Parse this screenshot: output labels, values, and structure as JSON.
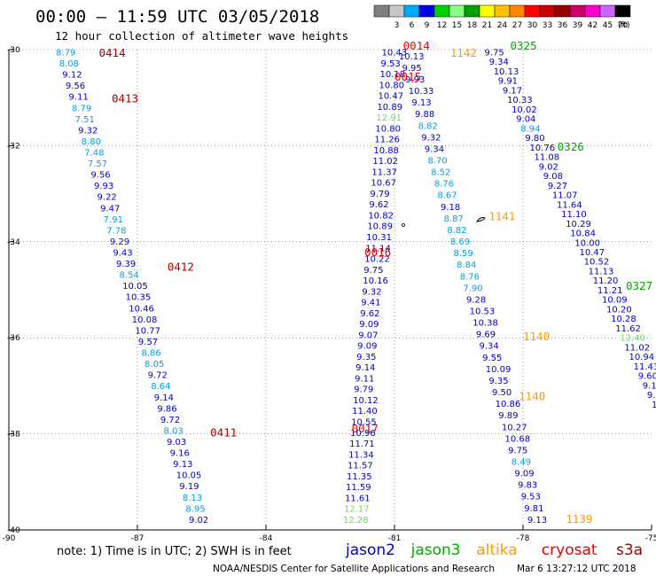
{
  "title": "00:00 – 11:59 UTC 03/05/2018",
  "subtitle": "12 hour collection of altimeter wave heights",
  "legend": {
    "unit_label": "(ft)",
    "bins": [
      {
        "label": "",
        "color": "#808080"
      },
      {
        "label": "3",
        "color": "#c8c8c8"
      },
      {
        "label": "6",
        "color": "#00aaff"
      },
      {
        "label": "9",
        "color": "#0000ee"
      },
      {
        "label": "12",
        "color": "#00d000"
      },
      {
        "label": "15",
        "color": "#88ff88"
      },
      {
        "label": "18",
        "color": "#00a000"
      },
      {
        "label": "21",
        "color": "#ffff00"
      },
      {
        "label": "24",
        "color": "#ffc000"
      },
      {
        "label": "27",
        "color": "#ff8800"
      },
      {
        "label": "30",
        "color": "#ff0000"
      },
      {
        "label": "33",
        "color": "#cc0000"
      },
      {
        "label": "36",
        "color": "#990000"
      },
      {
        "label": "39",
        "color": "#cc0066"
      },
      {
        "label": "42",
        "color": "#ff00cc"
      },
      {
        "label": "45",
        "color": "#cc66ff"
      },
      {
        "label": "70",
        "color": "#000000"
      }
    ]
  },
  "colors": {
    "blue": "#0000c8",
    "cyan": "#00a0e8",
    "green": "#66dd66",
    "red": "#ee0000",
    "darkred": "#aa0000",
    "orange": "#ff9900",
    "jason3": "#00aa00"
  },
  "chart_data": {
    "type": "scatter",
    "xlabel": "",
    "ylabel": "",
    "xlim": [
      -90,
      -75
    ],
    "ylim": [
      -40,
      -30
    ],
    "x_ticks": [
      "-90",
      "-87",
      "-84",
      "-81",
      "-78",
      "-75"
    ],
    "y_ticks": [
      "-30",
      "-32",
      "-34",
      "-36",
      "-38",
      "-40"
    ],
    "tracks": [
      {
        "satellite": "cryosat",
        "direction": "desc",
        "start": [
          -88.9,
          -30.12
        ],
        "end": [
          -85.8,
          -39.85
        ],
        "values": [
          {
            "v": "8.79",
            "c": "cyan"
          },
          {
            "v": "8.08",
            "c": "cyan"
          },
          {
            "v": "9.12",
            "c": "blue"
          },
          {
            "v": "9.56",
            "c": "blue"
          },
          {
            "v": "9.11",
            "c": "blue"
          },
          {
            "v": "8.79",
            "c": "cyan"
          },
          {
            "v": "7.51",
            "c": "cyan"
          },
          {
            "v": "9.32",
            "c": "blue"
          },
          {
            "v": "8.80",
            "c": "cyan"
          },
          {
            "v": "7.48",
            "c": "cyan"
          },
          {
            "v": "7.57",
            "c": "cyan"
          },
          {
            "v": "9.56",
            "c": "blue"
          },
          {
            "v": "9.93",
            "c": "blue"
          },
          {
            "v": "9.22",
            "c": "blue"
          },
          {
            "v": "9.47",
            "c": "blue"
          },
          {
            "v": "7.91",
            "c": "cyan"
          },
          {
            "v": "7.78",
            "c": "cyan"
          },
          {
            "v": "9.29",
            "c": "blue"
          },
          {
            "v": "9.43",
            "c": "blue"
          },
          {
            "v": "9.39",
            "c": "blue"
          },
          {
            "v": "8.54",
            "c": "cyan"
          },
          {
            "v": "10.05",
            "c": "blue"
          },
          {
            "v": "10.35",
            "c": "blue"
          },
          {
            "v": "10.46",
            "c": "blue"
          },
          {
            "v": "10.08",
            "c": "blue"
          },
          {
            "v": "10.77",
            "c": "blue"
          },
          {
            "v": "9.57",
            "c": "blue"
          },
          {
            "v": "8.86",
            "c": "cyan"
          },
          {
            "v": "8.05",
            "c": "cyan"
          },
          {
            "v": "9.72",
            "c": "blue"
          },
          {
            "v": "8.64",
            "c": "cyan"
          },
          {
            "v": "9.14",
            "c": "blue"
          },
          {
            "v": "9.86",
            "c": "blue"
          },
          {
            "v": "9.72",
            "c": "blue"
          },
          {
            "v": "8.03",
            "c": "cyan"
          },
          {
            "v": "9.03",
            "c": "blue"
          },
          {
            "v": "9.16",
            "c": "blue"
          },
          {
            "v": "9.13",
            "c": "blue"
          },
          {
            "v": "10.05",
            "c": "blue"
          },
          {
            "v": "9.19",
            "c": "blue"
          },
          {
            "v": "8.13",
            "c": "cyan"
          },
          {
            "v": "8.95",
            "c": "cyan"
          },
          {
            "v": "9.02",
            "c": "blue"
          }
        ]
      },
      {
        "satellite": "cryosat",
        "direction": "asc",
        "start": [
          -82.2,
          -39.85
        ],
        "end": [
          -81.3,
          -30.12
        ],
        "values": [
          {
            "v": "12.28",
            "c": "green"
          },
          {
            "v": "12.17",
            "c": "green"
          },
          {
            "v": "11.61",
            "c": "blue"
          },
          {
            "v": "11.59",
            "c": "blue"
          },
          {
            "v": "11.35",
            "c": "blue"
          },
          {
            "v": "11.57",
            "c": "blue"
          },
          {
            "v": "11.34",
            "c": "blue"
          },
          {
            "v": "11.71",
            "c": "blue"
          },
          {
            "v": "10.96",
            "c": "blue"
          },
          {
            "v": "10.55",
            "c": "blue"
          },
          {
            "v": "11.40",
            "c": "blue"
          },
          {
            "v": "10.12",
            "c": "blue"
          },
          {
            "v": "9.79",
            "c": "blue"
          },
          {
            "v": "9.11",
            "c": "blue"
          },
          {
            "v": "9.14",
            "c": "blue"
          },
          {
            "v": "9.35",
            "c": "blue"
          },
          {
            "v": "9.09",
            "c": "blue"
          },
          {
            "v": "9.07",
            "c": "blue"
          },
          {
            "v": "9.09",
            "c": "blue"
          },
          {
            "v": "9.62",
            "c": "blue"
          },
          {
            "v": "9.41",
            "c": "blue"
          },
          {
            "v": "9.32",
            "c": "blue"
          },
          {
            "v": "10.16",
            "c": "blue"
          },
          {
            "v": "9.75",
            "c": "blue"
          },
          {
            "v": "10.22",
            "c": "blue"
          },
          {
            "v": "11.14",
            "c": "blue"
          },
          {
            "v": "10.31",
            "c": "blue"
          },
          {
            "v": "10.89",
            "c": "blue"
          },
          {
            "v": "10.82",
            "c": "blue"
          },
          {
            "v": "9.62",
            "c": "blue"
          },
          {
            "v": "9.79",
            "c": "blue"
          },
          {
            "v": "10.67",
            "c": "blue"
          },
          {
            "v": "11.37",
            "c": "blue"
          },
          {
            "v": "11.02",
            "c": "blue"
          },
          {
            "v": "10.88",
            "c": "blue"
          },
          {
            "v": "11.26",
            "c": "blue"
          },
          {
            "v": "10.80",
            "c": "blue"
          },
          {
            "v": "12.91",
            "c": "green"
          },
          {
            "v": "10.89",
            "c": "blue"
          },
          {
            "v": "10.47",
            "c": "blue"
          },
          {
            "v": "10.80",
            "c": "blue"
          },
          {
            "v": "10.18",
            "c": "blue"
          },
          {
            "v": "9.53",
            "c": "blue"
          },
          {
            "v": "10.43",
            "c": "blue"
          }
        ]
      },
      {
        "satellite": "altika",
        "direction": "desc",
        "start": [
          -80.9,
          -30.2
        ],
        "end": [
          -77.9,
          -39.85
        ],
        "values": [
          {
            "v": "10.13",
            "c": "blue"
          },
          {
            "v": "9.95",
            "c": "blue"
          },
          {
            "v": "9.93",
            "c": "blue"
          },
          {
            "v": "10.33",
            "c": "blue"
          },
          {
            "v": "9.13",
            "c": "blue"
          },
          {
            "v": "9.88",
            "c": "blue"
          },
          {
            "v": "8.82",
            "c": "cyan"
          },
          {
            "v": "9.32",
            "c": "blue"
          },
          {
            "v": "9.34",
            "c": "blue"
          },
          {
            "v": "8.70",
            "c": "cyan"
          },
          {
            "v": "8.52",
            "c": "cyan"
          },
          {
            "v": "8.76",
            "c": "cyan"
          },
          {
            "v": "8.67",
            "c": "cyan"
          },
          {
            "v": "9.18",
            "c": "blue"
          },
          {
            "v": "8.87",
            "c": "cyan"
          },
          {
            "v": "8.82",
            "c": "cyan"
          },
          {
            "v": "8.69",
            "c": "cyan"
          },
          {
            "v": "8.59",
            "c": "cyan"
          },
          {
            "v": "8.84",
            "c": "cyan"
          },
          {
            "v": "8.76",
            "c": "cyan"
          },
          {
            "v": "7.90",
            "c": "cyan"
          },
          {
            "v": "9.28",
            "c": "blue"
          },
          {
            "v": "10.53",
            "c": "blue"
          },
          {
            "v": "10.38",
            "c": "blue"
          },
          {
            "v": "9.69",
            "c": "blue"
          },
          {
            "v": "9.34",
            "c": "blue"
          },
          {
            "v": "9.55",
            "c": "blue"
          },
          {
            "v": "10.09",
            "c": "blue"
          },
          {
            "v": "9.35",
            "c": "blue"
          },
          {
            "v": "9.50",
            "c": "blue"
          },
          {
            "v": "10.86",
            "c": "blue"
          },
          {
            "v": "9.89",
            "c": "blue"
          },
          {
            "v": "10.27",
            "c": "blue"
          },
          {
            "v": "10.68",
            "c": "blue"
          },
          {
            "v": "9.75",
            "c": "blue"
          },
          {
            "v": "8.49",
            "c": "cyan"
          },
          {
            "v": "9.09",
            "c": "blue"
          },
          {
            "v": "9.83",
            "c": "blue"
          },
          {
            "v": "9.53",
            "c": "blue"
          },
          {
            "v": "9.81",
            "c": "blue"
          },
          {
            "v": "9.13",
            "c": "blue"
          }
        ]
      },
      {
        "satellite": "jason3",
        "direction": "desc",
        "start": [
          -78.9,
          -30.12
        ],
        "end": [
          -75.0,
          -37.45
        ],
        "values": [
          {
            "v": "9.75",
            "c": "blue"
          },
          {
            "v": "9.34",
            "c": "blue"
          },
          {
            "v": "10.13",
            "c": "blue"
          },
          {
            "v": "9.91",
            "c": "blue"
          },
          {
            "v": "9.17",
            "c": "blue"
          },
          {
            "v": "10.33",
            "c": "blue"
          },
          {
            "v": "10.02",
            "c": "blue"
          },
          {
            "v": "9.04",
            "c": "blue"
          },
          {
            "v": "8.94",
            "c": "cyan"
          },
          {
            "v": "9.80",
            "c": "blue"
          },
          {
            "v": "10.76",
            "c": "blue"
          },
          {
            "v": "11.08",
            "c": "blue"
          },
          {
            "v": "9.02",
            "c": "blue"
          },
          {
            "v": "9.08",
            "c": "blue"
          },
          {
            "v": "9.27",
            "c": "blue"
          },
          {
            "v": "11.07",
            "c": "blue"
          },
          {
            "v": "11.64",
            "c": "blue"
          },
          {
            "v": "11.10",
            "c": "blue"
          },
          {
            "v": "10.29",
            "c": "blue"
          },
          {
            "v": "10.84",
            "c": "blue"
          },
          {
            "v": "10.00",
            "c": "blue"
          },
          {
            "v": "10.47",
            "c": "blue"
          },
          {
            "v": "10.52",
            "c": "blue"
          },
          {
            "v": "11.13",
            "c": "blue"
          },
          {
            "v": "11.20",
            "c": "blue"
          },
          {
            "v": "11.21",
            "c": "blue"
          },
          {
            "v": "10.09",
            "c": "blue"
          },
          {
            "v": "10.20",
            "c": "blue"
          },
          {
            "v": "10.28",
            "c": "blue"
          },
          {
            "v": "11.62",
            "c": "blue"
          },
          {
            "v": "12.40",
            "c": "green"
          },
          {
            "v": "11.02",
            "c": "blue"
          },
          {
            "v": "10.94",
            "c": "blue"
          },
          {
            "v": "11.43",
            "c": "blue"
          },
          {
            "v": "9.60",
            "c": "blue"
          },
          {
            "v": "9.16",
            "c": "blue"
          },
          {
            "v": "9.9",
            "c": "blue"
          },
          {
            "v": "10",
            "c": "blue"
          }
        ]
      }
    ],
    "pass_labels": [
      {
        "text": "0414",
        "lon": -87.9,
        "lat": -30.15,
        "c": "darkred"
      },
      {
        "text": "0413",
        "lon": -87.6,
        "lat": -31.1,
        "c": "darkred"
      },
      {
        "text": "0412",
        "lon": -86.3,
        "lat": -34.6,
        "c": "darkred"
      },
      {
        "text": "0411",
        "lon": -85.3,
        "lat": -38.05,
        "c": "darkred"
      },
      {
        "text": "0014",
        "lon": -80.8,
        "lat": -30.0,
        "c": "red"
      },
      {
        "text": "0015",
        "lon": -81.0,
        "lat": -30.65,
        "c": "red"
      },
      {
        "text": "0016",
        "lon": -81.7,
        "lat": -34.3,
        "c": "red"
      },
      {
        "text": "0017",
        "lon": -82.0,
        "lat": -37.97,
        "c": "red"
      },
      {
        "text": "1142",
        "lon": -79.7,
        "lat": -30.15,
        "c": "orange"
      },
      {
        "text": "1141",
        "lon": -78.8,
        "lat": -33.55,
        "c": "orange"
      },
      {
        "text": "1140",
        "lon": -78.0,
        "lat": -36.05,
        "c": "orange"
      },
      {
        "text": "1140",
        "lon": -78.1,
        "lat": -37.3,
        "c": "orange"
      },
      {
        "text": "1139",
        "lon": -77.0,
        "lat": -39.85,
        "c": "orange"
      },
      {
        "text": "0325",
        "lon": -78.3,
        "lat": -30.0,
        "c": "jason3"
      },
      {
        "text": "0326",
        "lon": -77.2,
        "lat": -32.1,
        "c": "jason3"
      },
      {
        "text": "0327",
        "lon": -75.6,
        "lat": -35.0,
        "c": "jason3"
      }
    ]
  },
  "note": "note: 1) Time is in UTC; 2) SWH is in feet",
  "satellites": [
    {
      "name": "jason2",
      "color": "#0000c8"
    },
    {
      "name": "jason3",
      "color": "#00aa00"
    },
    {
      "name": "altika",
      "color": "#ff9900"
    },
    {
      "name": "cryosat",
      "color": "#ee0000"
    },
    {
      "name": "s3a",
      "color": "#990000"
    }
  ],
  "footer_left": "NOAA/NESDIS Center for Satellite Applications and Research",
  "footer_right": "Mar  6 13:27:12 UTC 2018"
}
